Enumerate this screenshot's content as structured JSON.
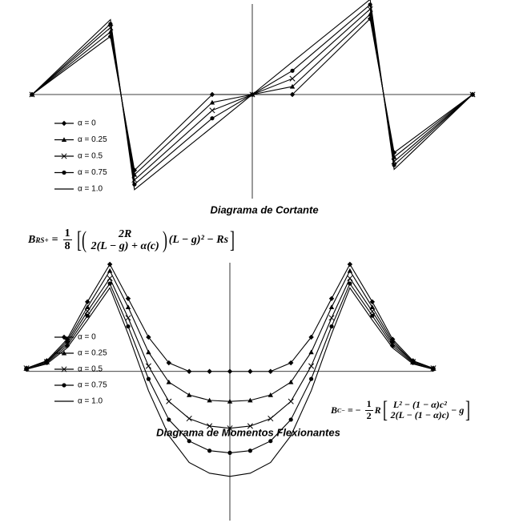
{
  "chart_data": [
    {
      "type": "line",
      "title": "Diagrama de Cortante",
      "legend": "left",
      "xlim": [
        -1,
        1
      ],
      "ylim": [
        -1.2,
        1.0
      ],
      "x": [
        -1,
        -0.644,
        -0.535,
        -0.182,
        0,
        0.182,
        0.535,
        0.644,
        1
      ],
      "series": [
        {
          "name": "α = 0",
          "color": "#000000",
          "marker": "diamond",
          "values": [
            0,
            0.66,
            -0.86,
            0,
            0,
            0,
            0.86,
            -0.66,
            0
          ]
        },
        {
          "name": "α = 0.25",
          "color": "#000000",
          "marker": "triangle",
          "values": [
            0,
            0.71,
            -0.91,
            -0.09,
            0,
            0.09,
            0.91,
            -0.71,
            0
          ]
        },
        {
          "name": "α = 0.5",
          "color": "#000000",
          "marker": "x",
          "values": [
            0,
            0.76,
            -0.97,
            -0.18,
            0,
            0.18,
            0.97,
            -0.76,
            0
          ]
        },
        {
          "name": "α = 0.75",
          "color": "#000000",
          "marker": "circle",
          "values": [
            0,
            0.8,
            -1.02,
            -0.27,
            0,
            0.27,
            1.02,
            -0.8,
            0
          ]
        },
        {
          "name": "α = 1.0",
          "color": "#000000",
          "marker": "none",
          "values": [
            0,
            0.85,
            -1.08,
            -0.37,
            0,
            0.37,
            1.08,
            -0.85,
            0
          ]
        }
      ]
    },
    {
      "type": "line",
      "title": "Diagrama de Momentos Flexionantes",
      "legend": "left",
      "xlim": [
        -1,
        1
      ],
      "ylim": [
        -1.4,
        1.0
      ],
      "x": [
        -1,
        -0.9,
        -0.8,
        -0.7,
        -0.59,
        -0.5,
        -0.4,
        -0.3,
        -0.2,
        -0.1,
        0,
        0.1,
        0.2,
        0.3,
        0.4,
        0.5,
        0.59,
        0.7,
        0.8,
        0.9,
        1
      ],
      "series": [
        {
          "name": "α = 0",
          "color": "#000000",
          "marker": "diamond",
          "values": [
            0.03,
            0.1,
            0.3,
            0.65,
            1.0,
            0.68,
            0.32,
            0.08,
            0,
            0,
            0,
            0,
            0,
            0.08,
            0.32,
            0.68,
            1.0,
            0.65,
            0.3,
            0.1,
            0.03
          ]
        },
        {
          "name": "α = 0.25",
          "color": "#000000",
          "marker": "triangle",
          "values": [
            0.03,
            0.09,
            0.28,
            0.6,
            0.94,
            0.6,
            0.18,
            -0.1,
            -0.22,
            -0.27,
            -0.28,
            -0.27,
            -0.22,
            -0.1,
            0.18,
            0.6,
            0.94,
            0.6,
            0.28,
            0.09,
            0.03
          ]
        },
        {
          "name": "α = 0.5",
          "color": "#000000",
          "marker": "x",
          "values": [
            0.03,
            0.09,
            0.26,
            0.56,
            0.87,
            0.5,
            0.05,
            -0.28,
            -0.44,
            -0.51,
            -0.53,
            -0.51,
            -0.44,
            -0.28,
            0.05,
            0.5,
            0.87,
            0.56,
            0.26,
            0.09,
            0.03
          ]
        },
        {
          "name": "α = 0.75",
          "color": "#000000",
          "marker": "circle",
          "values": [
            0.02,
            0.08,
            0.24,
            0.52,
            0.82,
            0.42,
            -0.07,
            -0.45,
            -0.65,
            -0.74,
            -0.76,
            -0.74,
            -0.65,
            -0.45,
            -0.07,
            0.42,
            0.82,
            0.52,
            0.24,
            0.08,
            0.02
          ]
        },
        {
          "name": "α = 1.0",
          "color": "#000000",
          "marker": "none",
          "values": [
            0.02,
            0.07,
            0.22,
            0.48,
            0.78,
            0.35,
            -0.18,
            -0.6,
            -0.85,
            -0.95,
            -0.98,
            -0.95,
            -0.85,
            -0.6,
            -0.18,
            0.35,
            0.78,
            0.48,
            0.22,
            0.07,
            0.02
          ]
        }
      ],
      "annotations": [
        {
          "lhs": "B",
          "lhs_sub": "RS+",
          "sign": "=",
          "coef_num": "1",
          "coef_den": "8",
          "num": "2R",
          "den": "2(L − g) + α(c)",
          "tail": "(L − g)² − Rs"
        },
        {
          "lhs": "B",
          "lhs_sub": "C−",
          "sign": "= −",
          "coef_num": "1",
          "coef_den": "2",
          "mid": "R",
          "num": "L² − (1 − α)c²",
          "den": "2(L − (1 − α)c)",
          "tail": "− g"
        }
      ]
    }
  ]
}
